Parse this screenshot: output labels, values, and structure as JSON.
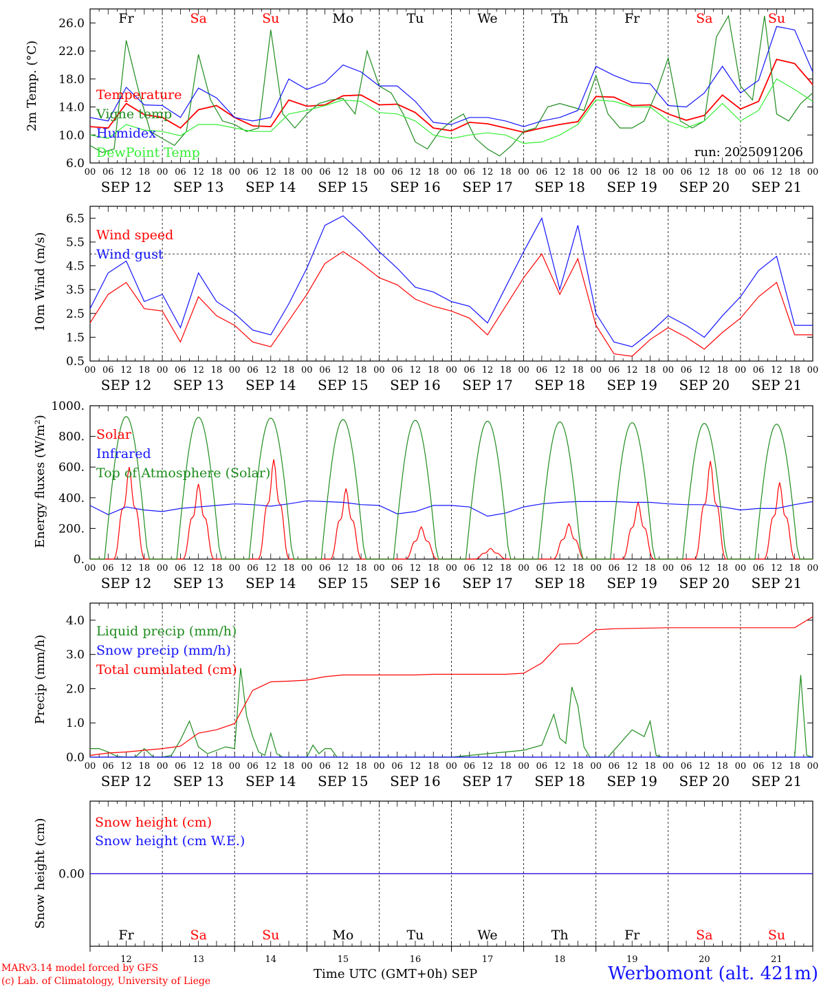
{
  "colors": {
    "red": "#ff0000",
    "green": "#1e8c1e",
    "lightgreen": "#33ee33",
    "blue": "#1414ff",
    "black": "#000000"
  },
  "x_axis": {
    "hour_ticks": [
      "00",
      "06",
      "12",
      "18"
    ],
    "day_labels": [
      "SEP 12",
      "SEP 13",
      "SEP 14",
      "SEP 15",
      "SEP 16",
      "SEP 17",
      "SEP 18",
      "SEP 19",
      "SEP 20",
      "SEP 21"
    ],
    "weekdays": [
      "Fr",
      "Sa",
      "Su",
      "Mo",
      "Tu",
      "We",
      "Th",
      "Fr",
      "Sa",
      "Su"
    ],
    "weekday_colors": [
      "#000000",
      "#ff0000",
      "#ff0000",
      "#000000",
      "#000000",
      "#000000",
      "#000000",
      "#000000",
      "#ff0000",
      "#ff0000"
    ],
    "day_numbers": [
      "12",
      "13",
      "14",
      "15",
      "16",
      "17",
      "18",
      "19",
      "20",
      "21"
    ],
    "bottom_label": "Time UTC (GMT+0h)",
    "month": "SEP"
  },
  "footer": {
    "credit_line1": "MARv3.14 model forced by GFS",
    "credit_line2": "(c) Lab. of Climatology, University of Liege",
    "station": "Werbomont (alt. 421m)"
  },
  "chart_data": [
    {
      "type": "line",
      "ylabel": "2m Temp. (°C)",
      "ylim": [
        6,
        28
      ],
      "yticks": [
        "6.0",
        "10.0",
        "14.0",
        "18.0",
        "22.0",
        "26.0"
      ],
      "annotation": "run: 2025091206",
      "x_unit": "hours since SEP 12 00 UTC",
      "series": [
        {
          "name": "Temperature",
          "color": "#ff0000",
          "x": [
            0,
            6,
            12,
            18,
            24,
            30,
            36,
            42,
            48,
            54,
            60,
            66,
            72,
            78,
            84,
            90,
            96,
            102,
            108,
            114,
            120,
            126,
            132,
            138,
            144,
            150,
            156,
            162,
            168,
            174,
            180,
            186,
            192,
            198,
            204,
            210,
            216,
            222,
            228,
            234,
            240
          ],
          "values": [
            11.2,
            11.0,
            14.5,
            12.9,
            12.5,
            11.0,
            13.6,
            14.2,
            12.5,
            11.3,
            11.2,
            15.0,
            14.1,
            14.3,
            15.6,
            15.7,
            14.3,
            14.4,
            13.2,
            11.0,
            10.6,
            11.8,
            11.6,
            11.0,
            10.4,
            11.0,
            11.5,
            11.9,
            15.5,
            15.4,
            14.2,
            14.3,
            13.0,
            12.1,
            12.8,
            15.7,
            13.7,
            14.8,
            20.8,
            20.2,
            17.2
          ]
        },
        {
          "name": "Vigne temp",
          "color": "#1e8c1e",
          "x": [
            0,
            4,
            8,
            12,
            16,
            20,
            24,
            28,
            32,
            36,
            40,
            44,
            48,
            52,
            56,
            60,
            64,
            68,
            72,
            76,
            80,
            84,
            88,
            92,
            96,
            100,
            104,
            108,
            112,
            116,
            120,
            124,
            128,
            132,
            136,
            140,
            144,
            148,
            152,
            156,
            160,
            164,
            168,
            172,
            176,
            180,
            184,
            188,
            192,
            196,
            200,
            204,
            208,
            212,
            216,
            220,
            224,
            228,
            232,
            236,
            240
          ],
          "values": [
            8.5,
            7.5,
            8.0,
            23.5,
            16.5,
            10.5,
            9.5,
            8.5,
            10.5,
            21.5,
            15.0,
            12.0,
            11.5,
            10.5,
            11.0,
            25.0,
            13.0,
            11.0,
            13.0,
            14.5,
            15.0,
            15.2,
            13.0,
            22.0,
            17.0,
            16.0,
            13.0,
            9.0,
            8.0,
            10.5,
            12.0,
            13.0,
            9.5,
            8.0,
            7.0,
            8.5,
            10.5,
            11.0,
            14.0,
            14.5,
            14.0,
            13.5,
            18.5,
            13.0,
            11.0,
            11.0,
            12.0,
            16.0,
            21.0,
            12.0,
            11.0,
            12.0,
            24.0,
            27.0,
            17.0,
            15.0,
            27.0,
            13.0,
            12.0,
            14.5,
            16.0
          ]
        },
        {
          "name": "Humidex",
          "color": "#1414ff",
          "x": [
            0,
            6,
            12,
            18,
            24,
            30,
            36,
            42,
            48,
            54,
            60,
            66,
            72,
            78,
            84,
            90,
            96,
            102,
            108,
            114,
            120,
            126,
            132,
            138,
            144,
            150,
            156,
            162,
            168,
            174,
            180,
            186,
            192,
            198,
            204,
            210,
            216,
            222,
            228,
            234,
            240
          ],
          "values": [
            12.5,
            12.0,
            16.8,
            14.3,
            14.2,
            12.5,
            16.7,
            15.3,
            12.5,
            12.0,
            12.5,
            18.0,
            16.5,
            17.5,
            20.0,
            19.0,
            17.0,
            17.0,
            14.8,
            11.8,
            11.5,
            12.5,
            12.5,
            12.0,
            11.2,
            12.0,
            12.5,
            13.5,
            19.8,
            18.5,
            17.5,
            17.3,
            14.2,
            14.0,
            16.0,
            19.8,
            16.0,
            17.8,
            25.5,
            25.0,
            19.0
          ]
        },
        {
          "name": "DewPoint Temp",
          "color": "#33ee33",
          "x": [
            0,
            6,
            12,
            18,
            24,
            30,
            36,
            42,
            48,
            54,
            60,
            66,
            72,
            78,
            84,
            90,
            96,
            102,
            108,
            114,
            120,
            126,
            132,
            138,
            144,
            150,
            156,
            162,
            168,
            174,
            180,
            186,
            192,
            198,
            204,
            210,
            216,
            222,
            228,
            234,
            240
          ],
          "values": [
            10.0,
            9.5,
            11.5,
            10.7,
            10.5,
            9.9,
            11.5,
            11.5,
            11.0,
            10.5,
            10.5,
            13.0,
            13.5,
            14.2,
            15.0,
            14.8,
            13.2,
            13.0,
            12.0,
            10.0,
            9.5,
            10.0,
            10.3,
            10.0,
            8.8,
            9.0,
            10.0,
            11.5,
            15.0,
            14.8,
            14.0,
            14.0,
            12.0,
            11.0,
            12.0,
            14.5,
            12.0,
            13.5,
            18.0,
            16.5,
            14.8
          ]
        }
      ]
    },
    {
      "type": "line",
      "ylabel": "10m Wind (m/s)",
      "ylim": [
        0.5,
        7.0
      ],
      "yticks": [
        "0.5",
        "1.5",
        "2.5",
        "3.5",
        "4.5",
        "5.5",
        "6.5"
      ],
      "reference_line": 5.0,
      "x_unit": "hours since SEP 12 00 UTC",
      "series": [
        {
          "name": "Wind speed",
          "color": "#ff0000",
          "x": [
            0,
            6,
            12,
            18,
            24,
            30,
            36,
            42,
            48,
            54,
            60,
            66,
            72,
            78,
            84,
            90,
            96,
            102,
            108,
            114,
            120,
            126,
            132,
            138,
            144,
            150,
            156,
            162,
            168,
            174,
            180,
            186,
            192,
            198,
            204,
            210,
            216,
            222,
            228,
            234,
            240
          ],
          "values": [
            2.1,
            3.3,
            3.8,
            2.7,
            2.6,
            1.3,
            3.2,
            2.4,
            2.0,
            1.3,
            1.1,
            2.2,
            3.3,
            4.6,
            5.1,
            4.6,
            4.0,
            3.7,
            3.1,
            2.8,
            2.6,
            2.3,
            1.6,
            2.8,
            4.0,
            5.0,
            3.3,
            4.8,
            2.0,
            0.8,
            0.7,
            1.4,
            1.9,
            1.5,
            1.0,
            1.7,
            2.3,
            3.2,
            3.8,
            1.6,
            1.6
          ]
        },
        {
          "name": "Wind gust",
          "color": "#1414ff",
          "x": [
            0,
            6,
            12,
            18,
            24,
            30,
            36,
            42,
            48,
            54,
            60,
            66,
            72,
            78,
            84,
            90,
            96,
            102,
            108,
            114,
            120,
            126,
            132,
            138,
            144,
            150,
            156,
            162,
            168,
            174,
            180,
            186,
            192,
            198,
            204,
            210,
            216,
            222,
            228,
            234,
            240
          ],
          "values": [
            2.7,
            4.2,
            4.7,
            3.0,
            3.3,
            1.9,
            4.2,
            3.0,
            2.5,
            1.8,
            1.6,
            2.9,
            4.4,
            6.2,
            6.6,
            5.9,
            5.1,
            4.4,
            3.6,
            3.4,
            3.0,
            2.8,
            2.1,
            3.6,
            5.1,
            6.5,
            3.5,
            6.2,
            2.5,
            1.3,
            1.1,
            1.7,
            2.4,
            2.0,
            1.5,
            2.4,
            3.2,
            4.3,
            4.9,
            2.0,
            2.0
          ]
        }
      ]
    },
    {
      "type": "line",
      "ylabel": "Energy fluxes (W/m²)",
      "ylim": [
        0,
        1000
      ],
      "yticks": [
        "0.",
        "200.",
        "400.",
        "600.",
        "800.",
        "1000."
      ],
      "x_unit": "hours since SEP 12 00 UTC",
      "series": [
        {
          "name": "Solar",
          "color": "#ff0000",
          "daily_peak": [
            600,
            490,
            650,
            460,
            210,
            70,
            230,
            370,
            640,
            500
          ],
          "daily_peak_hour": [
            13,
            12,
            13,
            13,
            14,
            13,
            15,
            14,
            14,
            13
          ]
        },
        {
          "name": "Infrared",
          "color": "#1414ff",
          "x": [
            0,
            6,
            12,
            18,
            24,
            30,
            36,
            42,
            48,
            54,
            60,
            66,
            72,
            78,
            84,
            90,
            96,
            102,
            108,
            114,
            120,
            126,
            132,
            138,
            144,
            150,
            156,
            162,
            168,
            174,
            180,
            186,
            192,
            198,
            204,
            210,
            216,
            222,
            228,
            234,
            240
          ],
          "values": [
            350,
            290,
            340,
            320,
            310,
            330,
            340,
            350,
            360,
            355,
            345,
            360,
            380,
            375,
            370,
            355,
            350,
            295,
            310,
            350,
            350,
            340,
            280,
            300,
            340,
            360,
            370,
            375,
            375,
            375,
            370,
            370,
            360,
            355,
            355,
            340,
            320,
            330,
            330,
            355,
            375
          ]
        },
        {
          "name": "Top of Atmosphere (Solar)",
          "color": "#1e8c1e",
          "daily_peak": [
            930,
            925,
            920,
            910,
            905,
            900,
            895,
            890,
            885,
            880
          ],
          "daily_peak_hour": [
            12,
            12,
            12,
            12,
            12,
            12,
            12,
            12,
            12,
            12
          ]
        }
      ]
    },
    {
      "type": "line",
      "ylabel": "Precip (mm/h)",
      "ylim": [
        0,
        4.5
      ],
      "yticks": [
        "0.0",
        "1.0",
        "2.0",
        "3.0",
        "4.0"
      ],
      "x_unit": "hours since SEP 12 00 UTC",
      "series": [
        {
          "name": "Liquid precip (mm/h)",
          "color": "#1e8c1e",
          "x": [
            0,
            3,
            6,
            9,
            12,
            15,
            18,
            21,
            24,
            27,
            30,
            33,
            36,
            39,
            42,
            45,
            48,
            50,
            52,
            54,
            56,
            58,
            60,
            62,
            64,
            66,
            68,
            70,
            72,
            74,
            76,
            78,
            80,
            82,
            84,
            88,
            96,
            120,
            144,
            150,
            154,
            156,
            158,
            160,
            162,
            164,
            166,
            168,
            170,
            172,
            180,
            184,
            186,
            188,
            190,
            192,
            200,
            228,
            234,
            236,
            238,
            240
          ],
          "values": [
            0.25,
            0.25,
            0.15,
            0.02,
            0.0,
            0.0,
            0.25,
            0.0,
            0.0,
            0.05,
            0.5,
            1.05,
            0.3,
            0.1,
            0.2,
            0.3,
            0.25,
            2.6,
            1.2,
            0.6,
            0.15,
            0.05,
            0.7,
            0.1,
            0.0,
            0.0,
            0.0,
            0.0,
            0.0,
            0.35,
            0.1,
            0.25,
            0.25,
            0.0,
            0.0,
            0.0,
            0.0,
            0.0,
            0.2,
            0.35,
            1.25,
            0.55,
            0.4,
            2.05,
            1.5,
            0.3,
            0.0,
            0.0,
            0.0,
            0.0,
            0.8,
            0.6,
            1.05,
            0.05,
            0.0,
            0.0,
            0.0,
            0.0,
            0.0,
            2.4,
            0.05,
            0.0
          ]
        },
        {
          "name": "Snow precip (mm/h)",
          "color": "#1414ff",
          "x": [
            0,
            240
          ],
          "values": [
            0,
            0
          ]
        },
        {
          "name": "Total cumulated (cm)",
          "color": "#ff0000",
          "x": [
            0,
            6,
            12,
            18,
            24,
            30,
            36,
            42,
            48,
            54,
            60,
            66,
            72,
            78,
            84,
            90,
            96,
            102,
            108,
            114,
            120,
            126,
            132,
            138,
            144,
            150,
            156,
            162,
            168,
            174,
            180,
            186,
            192,
            198,
            204,
            210,
            216,
            222,
            228,
            234,
            240
          ],
          "values": [
            0.05,
            0.12,
            0.15,
            0.2,
            0.25,
            0.32,
            0.7,
            0.8,
            0.98,
            1.95,
            2.2,
            2.22,
            2.25,
            2.35,
            2.4,
            2.4,
            2.4,
            2.4,
            2.4,
            2.42,
            2.42,
            2.42,
            2.42,
            2.42,
            2.45,
            2.75,
            3.3,
            3.32,
            3.72,
            3.75,
            3.76,
            3.77,
            3.78,
            3.78,
            3.78,
            3.78,
            3.78,
            3.78,
            3.78,
            3.78,
            4.1
          ]
        }
      ]
    },
    {
      "type": "line",
      "ylabel": "Snow height (cm)",
      "yticks": [
        "0.00"
      ],
      "x_unit": "hours since SEP 12 00 UTC",
      "series": [
        {
          "name": "Snow height (cm)",
          "color": "#ff0000",
          "x": [
            0,
            240
          ],
          "values": [
            0,
            0
          ]
        },
        {
          "name": "Snow height (cm W.E.)",
          "color": "#1414ff",
          "x": [
            0,
            240
          ],
          "values": [
            0,
            0
          ]
        }
      ]
    }
  ]
}
